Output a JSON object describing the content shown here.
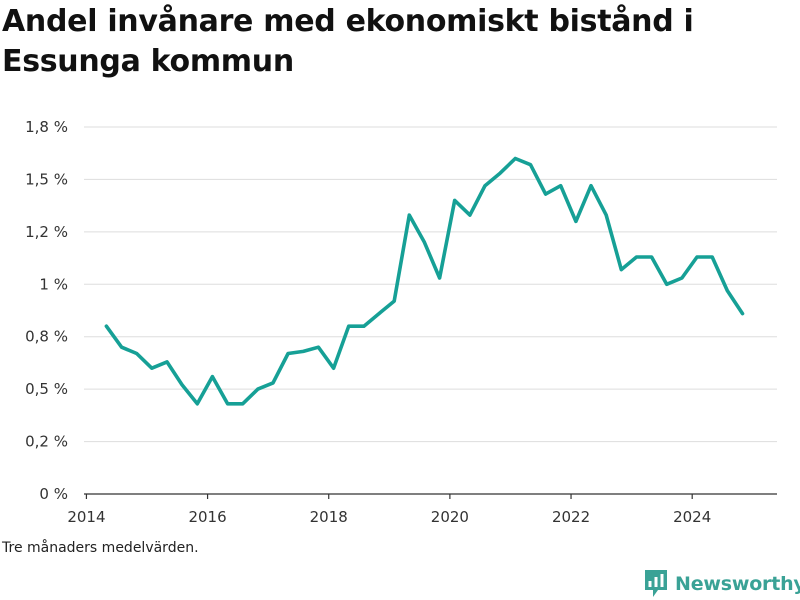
{
  "page": {
    "title": "Andel invånare med ekonomiskt bistånd i Essunga kommun",
    "footnote": "Tre månaders medelvärden.",
    "brand": "Newsworthy"
  },
  "colors": {
    "line": "#16a096",
    "grid": "#dddddd",
    "brand": "#3aa296"
  },
  "chart_data": {
    "type": "line",
    "title": "Andel invånare med ekonomiskt bistånd i Essunga kommun",
    "xlabel": "",
    "ylabel": "",
    "xlim": [
      2013.96,
      2025.4
    ],
    "ylim": [
      0,
      1.75
    ],
    "x_ticks": [
      2014,
      2016,
      2018,
      2020,
      2022,
      2024
    ],
    "x_tick_labels": [
      "2014",
      "2016",
      "2018",
      "2020",
      "2022",
      "2024"
    ],
    "y_ticks": [
      0,
      0.25,
      0.5,
      0.75,
      1.0,
      1.25,
      1.5,
      1.75
    ],
    "y_tick_labels": [
      "0 %",
      "0,2 %",
      "0,5 %",
      "0,8 %",
      "1 %",
      "1,2 %",
      "1,5 %",
      "1,8 %"
    ],
    "grid": true,
    "legend": "none",
    "series": [
      {
        "values": [
          [
            2014.33,
            0.8
          ],
          [
            2014.58,
            0.7
          ],
          [
            2014.83,
            0.67
          ],
          [
            2015.08,
            0.6
          ],
          [
            2015.33,
            0.63
          ],
          [
            2015.58,
            0.52
          ],
          [
            2015.83,
            0.43
          ],
          [
            2016.08,
            0.56
          ],
          [
            2016.33,
            0.43
          ],
          [
            2016.58,
            0.43
          ],
          [
            2016.83,
            0.5
          ],
          [
            2017.08,
            0.53
          ],
          [
            2017.33,
            0.67
          ],
          [
            2017.58,
            0.68
          ],
          [
            2017.83,
            0.7
          ],
          [
            2018.08,
            0.6
          ],
          [
            2018.33,
            0.8
          ],
          [
            2018.58,
            0.8
          ],
          [
            2018.83,
            0.86
          ],
          [
            2019.08,
            0.92
          ],
          [
            2019.33,
            1.33
          ],
          [
            2019.58,
            1.2
          ],
          [
            2019.83,
            1.03
          ],
          [
            2020.08,
            1.4
          ],
          [
            2020.33,
            1.33
          ],
          [
            2020.58,
            1.47
          ],
          [
            2020.83,
            1.53
          ],
          [
            2021.08,
            1.6
          ],
          [
            2021.33,
            1.57
          ],
          [
            2021.58,
            1.43
          ],
          [
            2021.83,
            1.47
          ],
          [
            2022.08,
            1.3
          ],
          [
            2022.33,
            1.47
          ],
          [
            2022.58,
            1.33
          ],
          [
            2022.83,
            1.07
          ],
          [
            2023.08,
            1.13
          ],
          [
            2023.33,
            1.13
          ],
          [
            2023.58,
            1.0
          ],
          [
            2023.83,
            1.03
          ],
          [
            2024.08,
            1.13
          ],
          [
            2024.33,
            1.13
          ],
          [
            2024.58,
            0.97
          ],
          [
            2024.83,
            0.86
          ]
        ]
      }
    ]
  }
}
